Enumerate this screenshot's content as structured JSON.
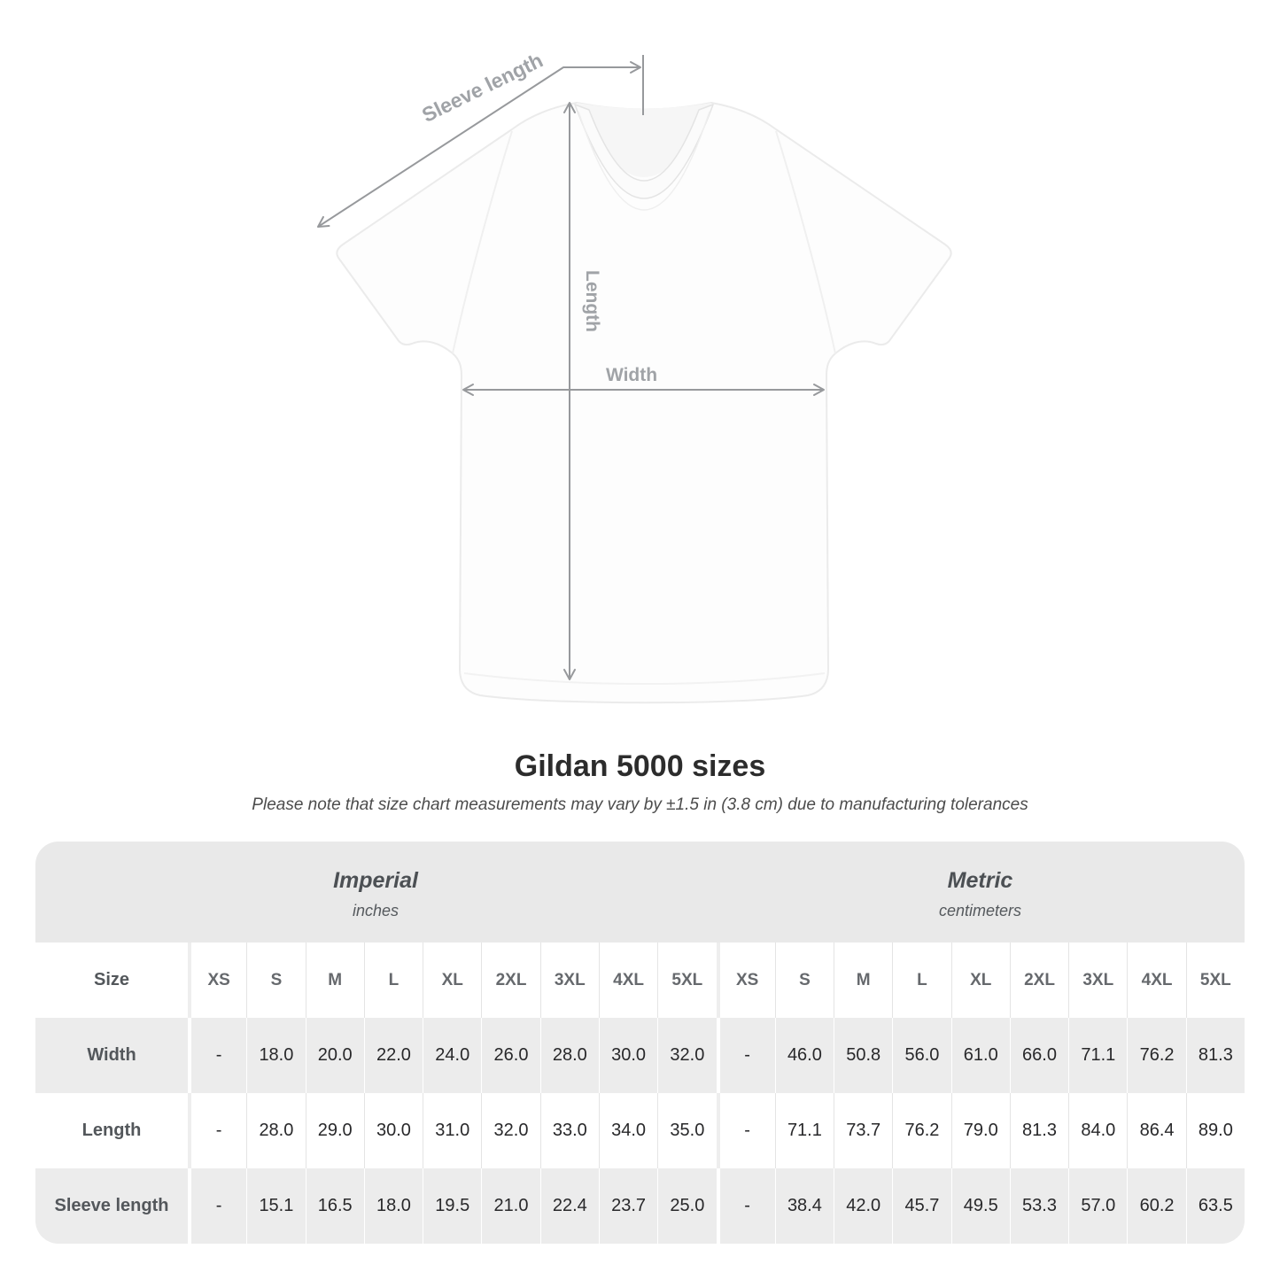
{
  "chart_data": {
    "type": "table",
    "title": "Gildan 5000 sizes",
    "subtitle": "Please note that size chart measurements may vary by ±1.5 in (3.8 cm) due to manufacturing tolerances",
    "unit_groups": [
      {
        "label": "Imperial",
        "sublabel": "inches"
      },
      {
        "label": "Metric",
        "sublabel": "centimeters"
      }
    ],
    "size_header_label": "Size",
    "sizes": [
      "XS",
      "S",
      "M",
      "L",
      "XL",
      "2XL",
      "3XL",
      "4XL",
      "5XL"
    ],
    "rows": [
      {
        "label": "Width",
        "imperial": [
          "-",
          "18.0",
          "20.0",
          "22.0",
          "24.0",
          "26.0",
          "28.0",
          "30.0",
          "32.0"
        ],
        "metric": [
          "-",
          "46.0",
          "50.8",
          "56.0",
          "61.0",
          "66.0",
          "71.1",
          "76.2",
          "81.3"
        ]
      },
      {
        "label": "Length",
        "imperial": [
          "-",
          "28.0",
          "29.0",
          "30.0",
          "31.0",
          "32.0",
          "33.0",
          "34.0",
          "35.0"
        ],
        "metric": [
          "-",
          "71.1",
          "73.7",
          "76.2",
          "79.0",
          "81.3",
          "84.0",
          "86.4",
          "89.0"
        ]
      },
      {
        "label": "Sleeve length",
        "imperial": [
          "-",
          "15.1",
          "16.5",
          "18.0",
          "19.5",
          "21.0",
          "22.4",
          "23.7",
          "25.0"
        ],
        "metric": [
          "-",
          "38.4",
          "42.0",
          "45.7",
          "49.5",
          "53.3",
          "57.0",
          "60.2",
          "63.5"
        ]
      }
    ]
  },
  "diagram": {
    "sleeve_length_label": "Sleeve length",
    "length_label": "Length",
    "width_label": "Width"
  },
  "colors": {
    "table_header_bg": "#e9e9e9",
    "row_stripe_bg": "#ececec",
    "value_text": "#28282a",
    "heading_text": "#2c2c2c",
    "muted_label_text": "#53575b",
    "diagram_annotation": "#a0a3a7",
    "arrow": "#97999c"
  }
}
